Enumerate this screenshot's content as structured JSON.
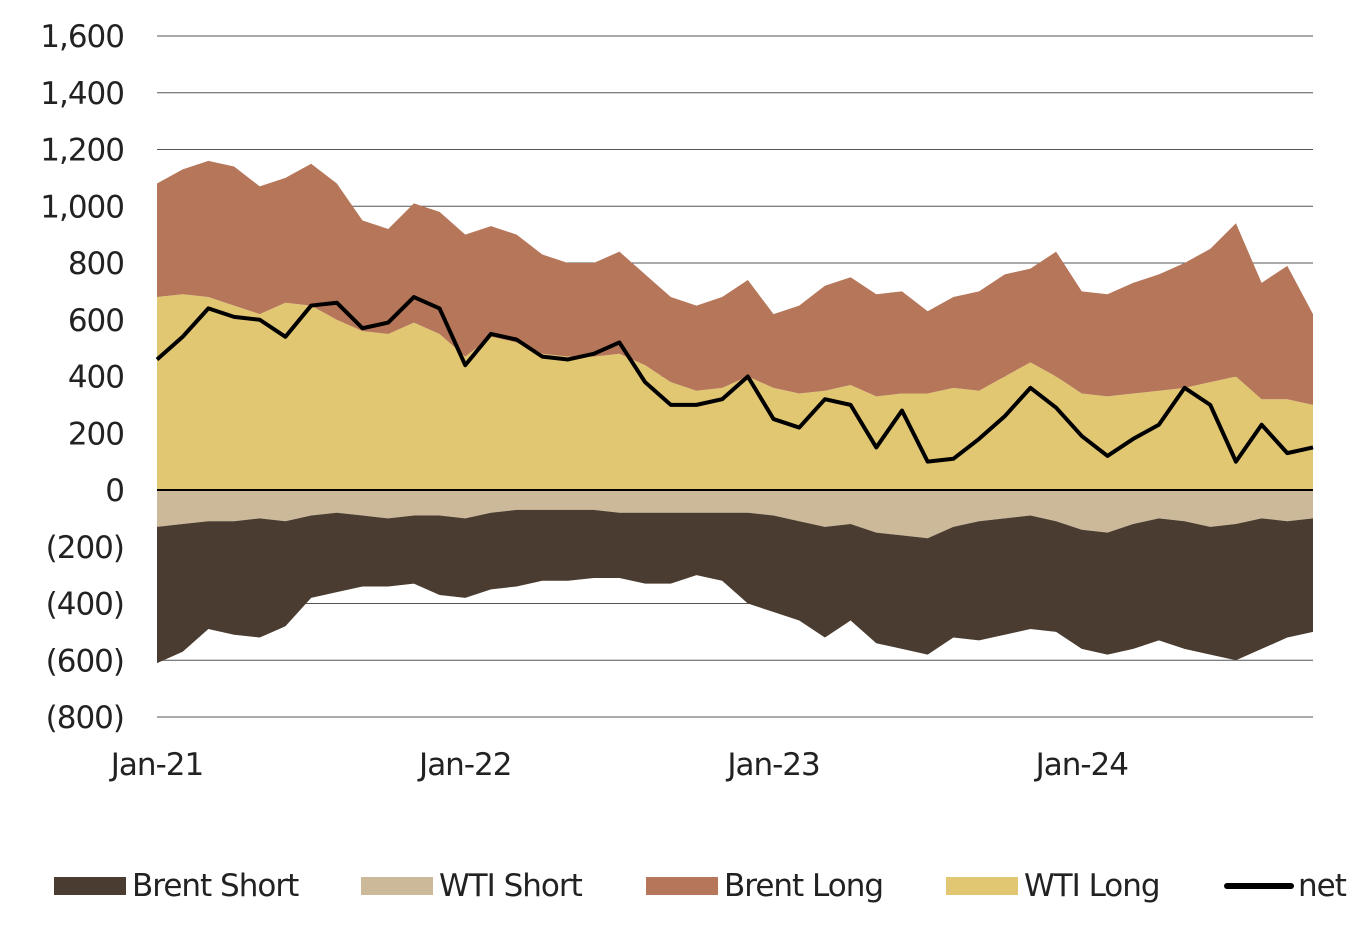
{
  "chart_data": {
    "type": "area",
    "title": "",
    "xlabel": "",
    "ylabel": "",
    "ylim": [
      -800,
      1600
    ],
    "yticks": [
      1600,
      1400,
      1200,
      1000,
      800,
      600,
      400,
      200,
      0,
      -200,
      -400,
      -600,
      -800
    ],
    "ytick_labels": [
      "1,600",
      "1,400",
      "1,200",
      "1,000",
      "800",
      "600",
      "400",
      "200",
      "0",
      "(200)",
      "(400)",
      "(600)",
      "(800)"
    ],
    "x_unit": "months since Jan-21",
    "xlim": [
      0,
      45
    ],
    "xticks": [
      0,
      12,
      24,
      36
    ],
    "xtick_labels": [
      "Jan-21",
      "Jan-22",
      "Jan-23",
      "Jan-24"
    ],
    "grid": "horizontal",
    "legend_position": "bottom",
    "stacked": true,
    "series": [
      {
        "name": "Brent Short",
        "color": "#4a3c30",
        "side": "negative",
        "values": [
          -480,
          -450,
          -380,
          -400,
          -420,
          -370,
          -290,
          -280,
          -250,
          -240,
          -240,
          -280,
          -280,
          -270,
          -270,
          -250,
          -250,
          -240,
          -230,
          -250,
          -250,
          -220,
          -240,
          -320,
          -340,
          -350,
          -390,
          -340,
          -390,
          -400,
          -410,
          -390,
          -420,
          -410,
          -400,
          -390,
          -420,
          -430,
          -440,
          -430,
          -450,
          -450,
          -480,
          -460,
          -410,
          -400
        ]
      },
      {
        "name": "WTI Short",
        "color": "#cbb99a",
        "side": "negative",
        "values": [
          -130,
          -120,
          -110,
          -110,
          -100,
          -110,
          -90,
          -80,
          -90,
          -100,
          -90,
          -90,
          -100,
          -80,
          -70,
          -70,
          -70,
          -70,
          -80,
          -80,
          -80,
          -80,
          -80,
          -80,
          -90,
          -110,
          -130,
          -120,
          -150,
          -160,
          -170,
          -130,
          -110,
          -100,
          -90,
          -110,
          -140,
          -150,
          -120,
          -100,
          -110,
          -130,
          -120,
          -100,
          -110,
          -100
        ]
      },
      {
        "name": "Brent Long",
        "color": "#b5765a",
        "side": "positive",
        "values": [
          400,
          440,
          480,
          490,
          450,
          440,
          500,
          480,
          390,
          370,
          420,
          430,
          430,
          390,
          380,
          350,
          330,
          330,
          360,
          320,
          300,
          300,
          320,
          340,
          260,
          310,
          370,
          380,
          360,
          360,
          290,
          320,
          350,
          360,
          330,
          440,
          360,
          360,
          390,
          410,
          440,
          470,
          540,
          410,
          470,
          320
        ]
      },
      {
        "name": "WTI Long",
        "color": "#e2c773",
        "side": "positive",
        "values": [
          680,
          690,
          680,
          650,
          620,
          660,
          650,
          600,
          560,
          550,
          590,
          550,
          470,
          540,
          520,
          480,
          470,
          470,
          480,
          440,
          380,
          350,
          360,
          400,
          360,
          340,
          350,
          370,
          330,
          340,
          340,
          360,
          350,
          400,
          450,
          400,
          340,
          330,
          340,
          350,
          360,
          380,
          400,
          320,
          320,
          300
        ]
      },
      {
        "name": "net",
        "color": "#000000",
        "type": "line",
        "values": [
          460,
          540,
          640,
          610,
          600,
          540,
          650,
          660,
          570,
          590,
          680,
          640,
          440,
          550,
          530,
          470,
          460,
          480,
          520,
          380,
          300,
          300,
          320,
          400,
          250,
          220,
          320,
          300,
          150,
          280,
          100,
          110,
          180,
          260,
          360,
          290,
          190,
          120,
          180,
          230,
          360,
          300,
          100,
          230,
          130,
          150
        ]
      }
    ]
  }
}
